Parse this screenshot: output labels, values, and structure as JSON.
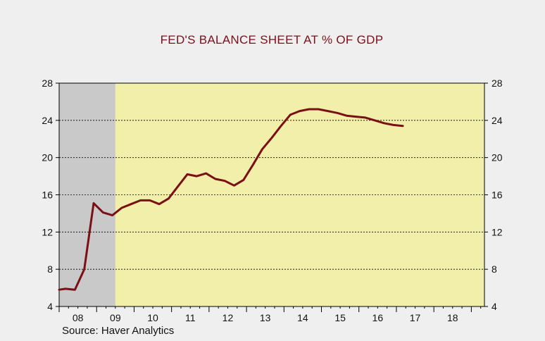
{
  "chart_data": {
    "type": "line",
    "title": "FED'S BALANCE SHEET AT % OF GDP",
    "source": "Source: Haver Analytics",
    "xlabel": "",
    "ylabel": "",
    "xlim": [
      2007.5,
      2018.85
    ],
    "ylim": [
      4,
      28
    ],
    "y_ticks": [
      4,
      8,
      12,
      16,
      20,
      24,
      28
    ],
    "y_tick_labels": [
      "4",
      "8",
      "12",
      "16",
      "20",
      "24",
      "28"
    ],
    "x_tick_labels": [
      "08",
      "09",
      "10",
      "11",
      "12",
      "13",
      "14",
      "15",
      "16",
      "17",
      "18"
    ],
    "x_tick_label_centers": [
      2008.0,
      2009.0,
      2010.0,
      2011.0,
      2012.0,
      2013.0,
      2014.0,
      2015.0,
      2016.0,
      2017.0,
      2018.0
    ],
    "grid": "horizontal dashed",
    "axes": "left and right y axes",
    "recession_shading": [
      [
        2007.5,
        2009.0
      ]
    ],
    "colors": {
      "plot_background": "#f2efab",
      "recession": "#c9c9c9",
      "line": "#7a0f14",
      "title": "#7a0f1c",
      "page_background": "#efefef"
    },
    "series": [
      {
        "x": [
          2007.5,
          2007.67,
          2007.92,
          2008.17,
          2008.42,
          2008.67,
          2008.92,
          2009.17,
          2009.42,
          2009.67,
          2009.92,
          2010.17,
          2010.42,
          2010.67,
          2010.92,
          2011.17,
          2011.42,
          2011.67,
          2011.92,
          2012.17,
          2012.42,
          2012.67,
          2012.92,
          2013.17,
          2013.42,
          2013.67,
          2013.92,
          2014.17,
          2014.42,
          2014.67,
          2014.92,
          2015.17,
          2015.42,
          2015.67,
          2015.92,
          2016.17,
          2016.42,
          2016.67
        ],
        "values": [
          5.8,
          5.9,
          5.8,
          8.0,
          15.1,
          14.1,
          13.8,
          14.6,
          15.0,
          15.4,
          15.4,
          15.0,
          15.6,
          16.9,
          18.2,
          18.0,
          18.3,
          17.7,
          17.5,
          17.0,
          17.6,
          19.2,
          20.9,
          22.1,
          23.4,
          24.6,
          25.0,
          25.2,
          25.2,
          25.0,
          24.8,
          24.5,
          24.4,
          24.3,
          24.0,
          23.7,
          23.5,
          23.4
        ]
      }
    ]
  }
}
